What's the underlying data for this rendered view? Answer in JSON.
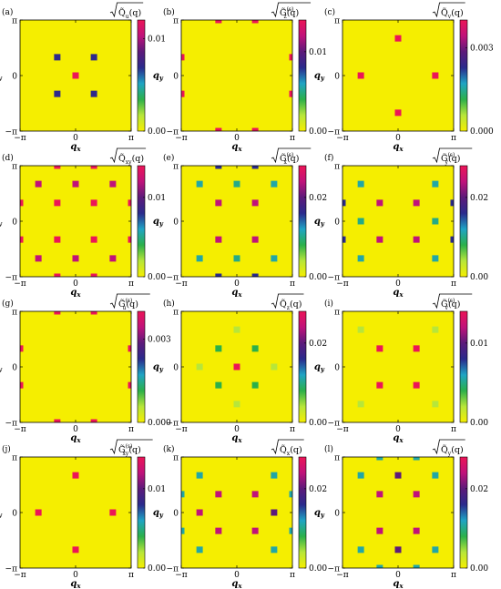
{
  "figure": {
    "background_color": "#f5ee00",
    "colormap": [
      "#f5ee00",
      "#b7e63a",
      "#2bb04a",
      "#1fa4c4",
      "#2a2a8c",
      "#5c1a7a",
      "#c0127a",
      "#ec1557"
    ]
  },
  "chart_data": [
    {
      "type": "heatmap",
      "panel": "(a)",
      "title": "√Q̃u(q)",
      "xlabel": "q_x",
      "ylabel": "q_y",
      "x_ticks": [
        "−π",
        "0",
        "π"
      ],
      "y_ticks": [
        "π",
        "0",
        "−π"
      ],
      "colorbar_ticks": [
        "0.01",
        "0.00"
      ],
      "colorbar_range": [
        0,
        0.012
      ],
      "points": [
        {
          "qx": 0,
          "qy": 0,
          "value": 0.012
        },
        {
          "qx": -0.33,
          "qy": 0.33,
          "value": 0.007
        },
        {
          "qx": 0.33,
          "qy": 0.33,
          "value": 0.007
        },
        {
          "qx": -0.33,
          "qy": -0.33,
          "value": 0.007
        },
        {
          "qx": 0.33,
          "qy": -0.33,
          "value": 0.007
        }
      ]
    },
    {
      "type": "heatmap",
      "panel": "(b)",
      "title": "√G̃z(s)(q)",
      "xlabel": "q_x",
      "ylabel": "q_y",
      "x_ticks": [
        "−π",
        "0",
        "π"
      ],
      "y_ticks": [
        "π",
        "0",
        "−π"
      ],
      "colorbar_ticks": [
        "0.01",
        "0.00"
      ],
      "colorbar_range": [
        0,
        0.014
      ],
      "points": [
        {
          "qx": -0.33,
          "qy": 1,
          "value": 0.014
        },
        {
          "qx": 0.33,
          "qy": 1,
          "value": 0.014
        },
        {
          "qx": -0.33,
          "qy": -1,
          "value": 0.014
        },
        {
          "qx": 0.33,
          "qy": -1,
          "value": 0.014
        },
        {
          "qx": -1,
          "qy": 0.33,
          "value": 0.014
        },
        {
          "qx": 1,
          "qy": 0.33,
          "value": 0.014
        },
        {
          "qx": -1,
          "qy": -0.33,
          "value": 0.014
        },
        {
          "qx": 1,
          "qy": -0.33,
          "value": 0.014
        }
      ]
    },
    {
      "type": "heatmap",
      "panel": "(c)",
      "title": "√Q̃v(q)",
      "xlabel": "q_x",
      "ylabel": "q_y",
      "x_ticks": [
        "−π",
        "0",
        "π"
      ],
      "y_ticks": [
        "π",
        "0",
        "−π"
      ],
      "colorbar_ticks": [
        "0.003",
        "0.000"
      ],
      "colorbar_range": [
        0,
        0.004
      ],
      "points": [
        {
          "qx": 0,
          "qy": 0.67,
          "value": 0.004
        },
        {
          "qx": 0,
          "qy": -0.67,
          "value": 0.004
        },
        {
          "qx": -0.67,
          "qy": 0,
          "value": 0.004
        },
        {
          "qx": 0.67,
          "qy": 0,
          "value": 0.004
        }
      ]
    },
    {
      "type": "heatmap",
      "panel": "(d)",
      "title": "√Q̃xy(q)",
      "xlabel": "q_x",
      "ylabel": "q_y",
      "x_ticks": [
        "−π",
        "0",
        "π"
      ],
      "y_ticks": [
        "π",
        "0",
        "−π"
      ],
      "colorbar_ticks": [
        "0.01",
        "0.00"
      ],
      "colorbar_range": [
        0,
        0.014
      ],
      "points": [
        {
          "qx": -0.67,
          "qy": 0.67,
          "value": 0.012
        },
        {
          "qx": 0,
          "qy": 0.67,
          "value": 0.012
        },
        {
          "qx": 0.67,
          "qy": 0.67,
          "value": 0.012
        },
        {
          "qx": -0.67,
          "qy": -0.67,
          "value": 0.012
        },
        {
          "qx": 0,
          "qy": -0.67,
          "value": 0.012
        },
        {
          "qx": 0.67,
          "qy": -0.67,
          "value": 0.012
        },
        {
          "qx": -0.33,
          "qy": 0.33,
          "value": 0.014
        },
        {
          "qx": 0.33,
          "qy": 0.33,
          "value": 0.014
        },
        {
          "qx": -0.33,
          "qy": -0.33,
          "value": 0.014
        },
        {
          "qx": 0.33,
          "qy": -0.33,
          "value": 0.014
        },
        {
          "qx": -1,
          "qy": 0.33,
          "value": 0.014
        },
        {
          "qx": 1,
          "qy": 0.33,
          "value": 0.014
        },
        {
          "qx": -1,
          "qy": -0.33,
          "value": 0.014
        },
        {
          "qx": 1,
          "qy": -0.33,
          "value": 0.014
        },
        {
          "qx": -0.33,
          "qy": 1,
          "value": 0.014
        },
        {
          "qx": 0.33,
          "qy": 1,
          "value": 0.014
        },
        {
          "qx": -0.33,
          "qy": -1,
          "value": 0.014
        },
        {
          "qx": 0.33,
          "qy": -1,
          "value": 0.014
        }
      ]
    },
    {
      "type": "heatmap",
      "panel": "(e)",
      "title": "√G̃x(s)(q)",
      "xlabel": "q_x",
      "ylabel": "q_y",
      "x_ticks": [
        "−π",
        "0",
        "π"
      ],
      "y_ticks": [
        "π",
        "0",
        "−π"
      ],
      "colorbar_ticks": [
        "0.02",
        "0.00"
      ],
      "colorbar_range": [
        0,
        0.028
      ],
      "points": [
        {
          "qx": -0.67,
          "qy": 0.67,
          "value": 0.011
        },
        {
          "qx": 0,
          "qy": 0.67,
          "value": 0.01
        },
        {
          "qx": 0.67,
          "qy": 0.67,
          "value": 0.011
        },
        {
          "qx": -0.67,
          "qy": -0.67,
          "value": 0.011
        },
        {
          "qx": 0,
          "qy": -0.67,
          "value": 0.01
        },
        {
          "qx": 0.67,
          "qy": -0.67,
          "value": 0.011
        },
        {
          "qx": -0.33,
          "qy": 0.33,
          "value": 0.024
        },
        {
          "qx": 0.33,
          "qy": 0.33,
          "value": 0.024
        },
        {
          "qx": -0.33,
          "qy": -0.33,
          "value": 0.024
        },
        {
          "qx": 0.33,
          "qy": -0.33,
          "value": 0.024
        },
        {
          "qx": -0.33,
          "qy": 1,
          "value": 0.016
        },
        {
          "qx": 0.33,
          "qy": 1,
          "value": 0.016
        },
        {
          "qx": -0.33,
          "qy": -1,
          "value": 0.016
        },
        {
          "qx": 0.33,
          "qy": -1,
          "value": 0.016
        }
      ]
    },
    {
      "type": "heatmap",
      "panel": "(f)",
      "title": "√G̃y(s)(q)",
      "xlabel": "q_x",
      "ylabel": "q_y",
      "x_ticks": [
        "−π",
        "0",
        "π"
      ],
      "y_ticks": [
        "π",
        "0",
        "−π"
      ],
      "colorbar_ticks": [
        "0.02",
        "0.00"
      ],
      "colorbar_range": [
        0,
        0.028
      ],
      "points": [
        {
          "qx": -0.67,
          "qy": 0.67,
          "value": 0.011
        },
        {
          "qx": 0.67,
          "qy": 0.67,
          "value": 0.011
        },
        {
          "qx": -0.67,
          "qy": 0,
          "value": 0.01
        },
        {
          "qx": 0.67,
          "qy": 0,
          "value": 0.01
        },
        {
          "qx": -0.67,
          "qy": -0.67,
          "value": 0.011
        },
        {
          "qx": 0.67,
          "qy": -0.67,
          "value": 0.011
        },
        {
          "qx": -0.33,
          "qy": 0.33,
          "value": 0.024
        },
        {
          "qx": 0.33,
          "qy": 0.33,
          "value": 0.024
        },
        {
          "qx": -0.33,
          "qy": -0.33,
          "value": 0.024
        },
        {
          "qx": 0.33,
          "qy": -0.33,
          "value": 0.024
        },
        {
          "qx": -1,
          "qy": 0.33,
          "value": 0.016
        },
        {
          "qx": 1,
          "qy": 0.33,
          "value": 0.016
        },
        {
          "qx": -1,
          "qy": -0.33,
          "value": 0.016
        },
        {
          "qx": 1,
          "qy": -0.33,
          "value": 0.016
        }
      ]
    },
    {
      "type": "heatmap",
      "panel": "(g)",
      "title": "√G̃u(s)(q)",
      "xlabel": "q_x",
      "ylabel": "q_y",
      "x_ticks": [
        "−π",
        "0",
        "π"
      ],
      "y_ticks": [
        "π",
        "0",
        "−π"
      ],
      "colorbar_ticks": [
        "0.003",
        "0.000"
      ],
      "colorbar_range": [
        0,
        0.004
      ],
      "points": [
        {
          "qx": -0.33,
          "qy": 1,
          "value": 0.004
        },
        {
          "qx": 0.33,
          "qy": 1,
          "value": 0.004
        },
        {
          "qx": -0.33,
          "qy": -1,
          "value": 0.004
        },
        {
          "qx": 0.33,
          "qy": -1,
          "value": 0.004
        },
        {
          "qx": -1,
          "qy": 0.33,
          "value": 0.004
        },
        {
          "qx": 1,
          "qy": 0.33,
          "value": 0.004
        },
        {
          "qx": -1,
          "qy": -0.33,
          "value": 0.004
        },
        {
          "qx": 1,
          "qy": -0.33,
          "value": 0.004
        }
      ]
    },
    {
      "type": "heatmap",
      "panel": "(h)",
      "title": "√Q̃z(q)",
      "xlabel": "q_x",
      "ylabel": "q_y",
      "x_ticks": [
        "−π",
        "0",
        "π"
      ],
      "y_ticks": [
        "π",
        "0",
        "−π"
      ],
      "colorbar_ticks": [
        "0.02",
        "0.00"
      ],
      "colorbar_range": [
        0,
        0.028
      ],
      "points": [
        {
          "qx": 0,
          "qy": 0,
          "value": 0.028
        },
        {
          "qx": 0,
          "qy": 0.67,
          "value": 0.004
        },
        {
          "qx": 0,
          "qy": -0.67,
          "value": 0.004
        },
        {
          "qx": -0.67,
          "qy": 0,
          "value": 0.004
        },
        {
          "qx": 0.67,
          "qy": 0,
          "value": 0.004
        },
        {
          "qx": -0.33,
          "qy": 0.33,
          "value": 0.008
        },
        {
          "qx": 0.33,
          "qy": 0.33,
          "value": 0.008
        },
        {
          "qx": -0.33,
          "qy": -0.33,
          "value": 0.008
        },
        {
          "qx": 0.33,
          "qy": -0.33,
          "value": 0.008
        }
      ]
    },
    {
      "type": "heatmap",
      "panel": "(i)",
      "title": "√G̃v(s)(q)",
      "xlabel": "q_x",
      "ylabel": "q_y",
      "x_ticks": [
        "−π",
        "0",
        "π"
      ],
      "y_ticks": [
        "π",
        "0",
        "−π"
      ],
      "colorbar_ticks": [
        "0.01",
        "0.00"
      ],
      "colorbar_range": [
        0,
        0.014
      ],
      "points": [
        {
          "qx": -0.67,
          "qy": 0.67,
          "value": 0.002
        },
        {
          "qx": 0.67,
          "qy": 0.67,
          "value": 0.002
        },
        {
          "qx": -0.67,
          "qy": -0.67,
          "value": 0.002
        },
        {
          "qx": 0.67,
          "qy": -0.67,
          "value": 0.002
        },
        {
          "qx": -0.33,
          "qy": 0.33,
          "value": 0.014
        },
        {
          "qx": 0.33,
          "qy": 0.33,
          "value": 0.014
        },
        {
          "qx": -0.33,
          "qy": -0.33,
          "value": 0.014
        },
        {
          "qx": 0.33,
          "qy": -0.33,
          "value": 0.014
        }
      ]
    },
    {
      "type": "heatmap",
      "panel": "(j)",
      "title": "√G̃xy(s)(q)",
      "xlabel": "q_x",
      "ylabel": "q_y",
      "x_ticks": [
        "−π",
        "0",
        "π"
      ],
      "y_ticks": [
        "π",
        "0",
        "−π"
      ],
      "colorbar_ticks": [
        "0.01",
        "0.00"
      ],
      "colorbar_range": [
        0,
        0.014
      ],
      "points": [
        {
          "qx": 0,
          "qy": 0.67,
          "value": 0.014
        },
        {
          "qx": 0,
          "qy": -0.67,
          "value": 0.014
        },
        {
          "qx": -0.67,
          "qy": 0,
          "value": 0.014
        },
        {
          "qx": 0.67,
          "qy": 0,
          "value": 0.014
        }
      ]
    },
    {
      "type": "heatmap",
      "panel": "(k)",
      "title": "√Q̃x(q)",
      "xlabel": "q_x",
      "ylabel": "q_y",
      "x_ticks": [
        "−π",
        "0",
        "π"
      ],
      "y_ticks": [
        "π",
        "0",
        "−π"
      ],
      "colorbar_ticks": [
        "0.02",
        "0.00"
      ],
      "colorbar_range": [
        0,
        0.028
      ],
      "points": [
        {
          "qx": -0.67,
          "qy": 0.67,
          "value": 0.011
        },
        {
          "qx": 0.67,
          "qy": 0.67,
          "value": 0.011
        },
        {
          "qx": -0.67,
          "qy": -0.67,
          "value": 0.011
        },
        {
          "qx": 0.67,
          "qy": -0.67,
          "value": 0.011
        },
        {
          "qx": -0.67,
          "qy": 0,
          "value": 0.024
        },
        {
          "qx": 0.67,
          "qy": 0,
          "value": 0.02
        },
        {
          "qx": -0.33,
          "qy": 0.33,
          "value": 0.024
        },
        {
          "qx": 0.33,
          "qy": 0.33,
          "value": 0.024
        },
        {
          "qx": -0.33,
          "qy": -0.33,
          "value": 0.024
        },
        {
          "qx": 0.33,
          "qy": -0.33,
          "value": 0.024
        },
        {
          "qx": -1,
          "qy": 0.33,
          "value": 0.011
        },
        {
          "qx": 1,
          "qy": 0.33,
          "value": 0.011
        },
        {
          "qx": -1,
          "qy": -0.33,
          "value": 0.011
        },
        {
          "qx": 1,
          "qy": -0.33,
          "value": 0.011
        }
      ]
    },
    {
      "type": "heatmap",
      "panel": "(l)",
      "title": "√Q̃y(q)",
      "xlabel": "q_x",
      "ylabel": "q_y",
      "x_ticks": [
        "−π",
        "0",
        "π"
      ],
      "y_ticks": [
        "π",
        "0",
        "−π"
      ],
      "colorbar_ticks": [
        "0.02",
        "0.00"
      ],
      "colorbar_range": [
        0,
        0.028
      ],
      "points": [
        {
          "qx": -0.67,
          "qy": 0.67,
          "value": 0.011
        },
        {
          "qx": 0.67,
          "qy": 0.67,
          "value": 0.011
        },
        {
          "qx": -0.67,
          "qy": -0.67,
          "value": 0.011
        },
        {
          "qx": 0.67,
          "qy": -0.67,
          "value": 0.011
        },
        {
          "qx": 0,
          "qy": 0.67,
          "value": 0.02
        },
        {
          "qx": 0,
          "qy": -0.67,
          "value": 0.02
        },
        {
          "qx": -0.33,
          "qy": 0.33,
          "value": 0.024
        },
        {
          "qx": 0.33,
          "qy": 0.33,
          "value": 0.024
        },
        {
          "qx": -0.33,
          "qy": -0.33,
          "value": 0.024
        },
        {
          "qx": 0.33,
          "qy": -0.33,
          "value": 0.024
        },
        {
          "qx": -0.33,
          "qy": 1,
          "value": 0.011
        },
        {
          "qx": 0.33,
          "qy": 1,
          "value": 0.011
        },
        {
          "qx": -0.33,
          "qy": -1,
          "value": 0.011
        },
        {
          "qx": 0.33,
          "qy": -1,
          "value": 0.011
        }
      ]
    }
  ]
}
